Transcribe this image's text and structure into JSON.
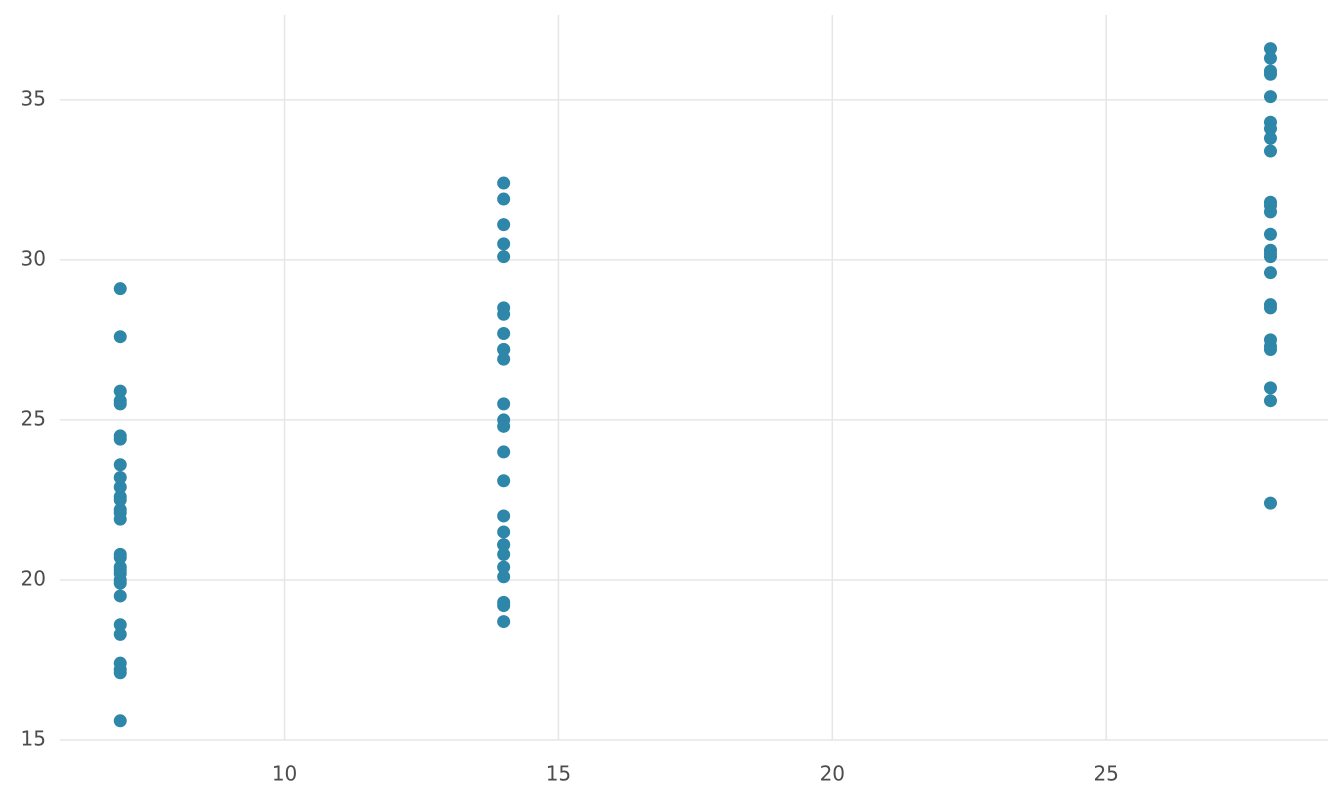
{
  "chart_data": {
    "type": "scatter",
    "series": [
      {
        "color": "#2e86a8",
        "x": [
          7,
          7,
          7,
          7,
          7,
          7,
          7,
          7,
          7,
          7,
          7,
          7,
          7,
          7,
          7,
          7,
          7,
          7,
          7,
          7,
          7,
          7,
          7,
          7,
          7,
          7,
          7,
          7,
          7,
          14,
          14,
          14,
          14,
          14,
          14,
          14,
          14,
          14,
          14,
          14,
          14,
          14,
          14,
          14,
          14,
          14,
          14,
          14,
          14,
          14,
          14,
          14,
          14,
          14,
          14,
          28,
          28,
          28,
          28,
          28,
          28,
          28,
          28,
          28,
          28,
          28,
          28,
          28,
          28,
          28,
          28,
          28,
          28,
          28,
          28,
          28,
          28,
          28,
          28,
          28
        ],
        "values": [
          29.1,
          27.6,
          25.9,
          25.6,
          25.5,
          24.5,
          24.4,
          23.6,
          23.2,
          22.9,
          22.6,
          22.5,
          22.2,
          22.1,
          21.9,
          20.8,
          20.7,
          20.4,
          20.3,
          20.2,
          20.0,
          19.9,
          19.5,
          18.6,
          18.3,
          17.4,
          17.2,
          17.1,
          15.6,
          32.4,
          31.9,
          31.1,
          30.5,
          30.1,
          28.5,
          28.3,
          27.7,
          27.2,
          27.2,
          26.9,
          25.5,
          25.0,
          24.8,
          24.0,
          23.1,
          22.0,
          21.5,
          21.1,
          21.1,
          20.8,
          20.4,
          20.1,
          19.3,
          19.2,
          18.7,
          36.6,
          36.3,
          35.9,
          35.8,
          35.1,
          34.3,
          34.1,
          33.8,
          33.4,
          31.8,
          31.7,
          31.5,
          30.8,
          30.3,
          30.2,
          30.1,
          29.6,
          28.6,
          28.5,
          27.5,
          27.3,
          27.2,
          26.0,
          25.6,
          22.4
        ]
      }
    ],
    "xlim": [
      5.9,
      29.05
    ],
    "xticks": [
      10,
      15,
      20,
      25
    ],
    "ylim": [
      15,
      37.65
    ],
    "yticks": [
      15,
      20,
      25,
      30,
      35
    ],
    "grid": true
  }
}
